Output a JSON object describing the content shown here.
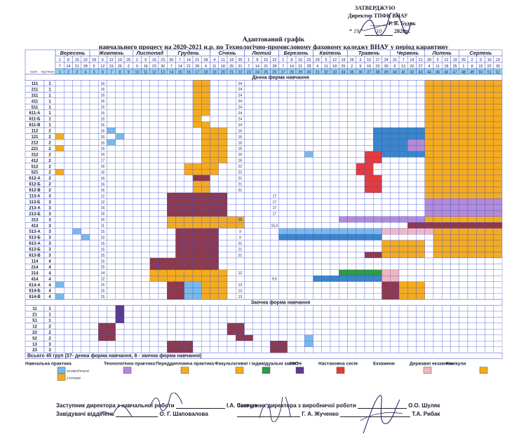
{
  "approval": {
    "line1": "ЗАТВЕРДЖУЮ",
    "line2": "Директор ТПФК ВНАУ",
    "line3": "Р. В. Будяк",
    "line4": "2020р.",
    "day": "19",
    "month": "10"
  },
  "title": {
    "line1": "Адаптований графік",
    "line2": "навчального процесу  на 2020-2021 н.р. по Технологічно-промисловому фаховому коледжу ВНАУ у період карантину"
  },
  "months": [
    "Вересень",
    "Жовтень",
    "Листопад",
    "Грудень",
    "Січень",
    "Лютий",
    "Березень",
    "Квітень",
    "Травень",
    "Червень",
    "Липень",
    "Серпень"
  ],
  "month_spans": [
    4,
    5,
    4,
    5,
    4,
    4,
    4,
    4,
    5,
    4,
    4,
    5
  ],
  "week_starts": [
    "1",
    "8",
    "15",
    "22",
    "29",
    "5",
    "12",
    "19",
    "26",
    "2",
    "9",
    "16",
    "23",
    "30",
    "7",
    "14",
    "21",
    "28",
    "4",
    "11",
    "18",
    "25",
    "1",
    "8",
    "15",
    "22",
    "1",
    "8",
    "15",
    "22",
    "29",
    "5",
    "12",
    "19",
    "26",
    "3",
    "10",
    "17",
    "24",
    "31",
    "7",
    "14",
    "21",
    "28",
    "5",
    "12",
    "19",
    "26",
    "2",
    "9",
    "16",
    "23"
  ],
  "week_ends": [
    "7",
    "14",
    "21",
    "28",
    "5",
    "12",
    "19",
    "26",
    "2",
    "9",
    "16",
    "23",
    "30",
    "7",
    "14",
    "21",
    "28",
    "4",
    "11",
    "18",
    "25",
    "31",
    "7",
    "14",
    "21",
    "28",
    "7",
    "14",
    "21",
    "28",
    "4",
    "11",
    "18",
    "25",
    "2",
    "9",
    "16",
    "23",
    "30",
    "6",
    "13",
    "20",
    "27",
    "4",
    "11",
    "18",
    "25",
    "1",
    "8",
    "15",
    "22",
    "30"
  ],
  "header_labels": {
    "group": "Групи",
    "course": "Курс",
    "weeks": "Тижні"
  },
  "section_day": "Денна форма навчання",
  "section_extramural": "Заочна форма навчання",
  "day_groups": [
    [
      "111",
      "1"
    ],
    [
      "211",
      "1"
    ],
    [
      "311",
      "1"
    ],
    [
      "411",
      "1"
    ],
    [
      "511",
      "1"
    ],
    [
      "611-А",
      "1"
    ],
    [
      "611-Б",
      "1"
    ],
    [
      "611-В",
      "1"
    ],
    [
      "112",
      "2"
    ],
    [
      "121",
      "2"
    ],
    [
      "212",
      "2"
    ],
    [
      "221",
      "2"
    ],
    [
      "312",
      "2"
    ],
    [
      "412",
      "2"
    ],
    [
      "512",
      "2"
    ],
    [
      "521",
      "2"
    ],
    [
      "612-А",
      "2"
    ],
    [
      "612-Б",
      "2"
    ],
    [
      "612-В",
      "2"
    ],
    [
      "113-А",
      "3"
    ],
    [
      "113-Б",
      "3"
    ],
    [
      "213-А",
      "3"
    ],
    [
      "213-Б",
      "3"
    ],
    [
      "313",
      "3"
    ],
    [
      "413",
      "3"
    ],
    [
      "513-А",
      "3"
    ],
    [
      "513-Б",
      "3"
    ],
    [
      "613-А",
      "3"
    ],
    [
      "613-Б",
      "3"
    ],
    [
      "613-В",
      "3"
    ],
    [
      "114",
      "4"
    ],
    [
      "214",
      "4"
    ],
    [
      "314",
      "4"
    ],
    [
      "414",
      "4"
    ],
    [
      "614-А",
      "4"
    ],
    [
      "614-Б",
      "4"
    ],
    [
      "614-В",
      "4"
    ]
  ],
  "extramural_groups": [
    [
      "11",
      "1"
    ],
    [
      "21",
      "1"
    ],
    [
      "51",
      "1"
    ],
    [
      "12",
      "2"
    ],
    [
      "22",
      "2"
    ],
    [
      "52",
      "2"
    ],
    [
      "13",
      "3"
    ],
    [
      "23",
      "3"
    ]
  ],
  "cell_numbers": {
    "c6": [
      "16",
      "16",
      "16",
      "16",
      "16",
      "15",
      "15",
      "15",
      "16",
      "16",
      "16",
      "16",
      "16",
      "17",
      "16",
      "16",
      "16",
      "16",
      "16",
      "12",
      "12",
      "16",
      "16",
      "16",
      "11",
      "15",
      "15",
      "15",
      "15",
      "15",
      "15",
      "15",
      "14",
      "12",
      "15",
      "15",
      "15"
    ],
    "c21": [
      "24",
      "24",
      "24",
      "24",
      "24",
      "24",
      "24",
      "24",
      "16",
      "16",
      "16",
      "16",
      "16",
      "16",
      "22",
      "22",
      "21",
      "21",
      "21",
      "",
      "",
      "",
      "",
      "15",
      "",
      "9",
      "9",
      "21",
      "21",
      "21",
      "",
      "",
      "12",
      "",
      "13",
      "13",
      "13"
    ],
    "c25": [
      "",
      "",
      "",
      "",
      "",
      "",
      "",
      "",
      "",
      "",
      "",
      "",
      "",
      "",
      "",
      "",
      "",
      "",
      "",
      "17",
      "17",
      "17",
      "17",
      "",
      "15,5",
      "",
      "",
      "",
      "",
      "",
      "",
      "",
      "",
      "9,5",
      "",
      "",
      ""
    ]
  },
  "summary": "Всього 45 груп (37- денна форма навчання, 8 - заочна форма навчання)",
  "legend": {
    "items": [
      "Навчальна практика",
      "Технологічна практика",
      "Переддипломна практика",
      "Факультативні і індивідуальні заняття",
      "ЗНО",
      "Настановча сесія",
      "Екзамени",
      "Державні екзамени",
      "Канікули"
    ],
    "sub1": "на виробництві",
    "sub2": "у коледжі"
  },
  "colors": {
    "orange": "#f4ab1f",
    "maroon": "#8e3a4c",
    "blue": "#3b86c9",
    "lightblue": "#7ab8e8",
    "red": "#e23c3c",
    "purple": "#b48bd6",
    "green": "#2f9a4a",
    "violet": "#5a3b8c",
    "pink": "#f2b6c0",
    "grid": "#3b4bd0"
  },
  "footer": {
    "left1": "Заступник директора з навчальної роботи",
    "left1_name": "І.А. Семчук",
    "left2": "Завідувачі відділень",
    "left2_name": "О. Г. Шаповалова",
    "right1": "Заступник директора з виробничої роботи",
    "right1_name": "О.О. Шуляк",
    "right2_name1": "Г. А. Жученко",
    "right2_name2": "Т.А. Рибак"
  }
}
